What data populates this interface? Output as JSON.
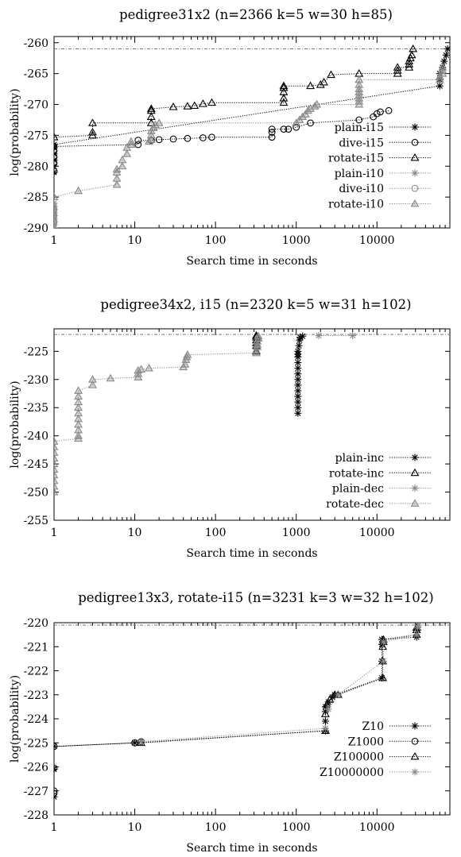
{
  "chart_data": [
    {
      "type": "scatter",
      "title": "pedigree31x2 (n=2366 k=5 w=30 h=85)",
      "xlabel": "Search time in seconds",
      "ylabel": "log(probability)",
      "xscale": "log",
      "xlim": [
        1,
        80000
      ],
      "ylim": [
        -290,
        -259
      ],
      "xticks": [
        1,
        10,
        100,
        1000,
        10000
      ],
      "yticks": [
        -290,
        -285,
        -280,
        -275,
        -270,
        -265,
        -260
      ],
      "legend": "bottom-right",
      "grid": false,
      "reference_line": -261,
      "series": [
        {
          "name": "plain-i15",
          "marker": "star",
          "color": "#000000",
          "points": [
            [
              1,
              -281
            ],
            [
              1,
              -280
            ],
            [
              1,
              -279
            ],
            [
              1,
              -278
            ],
            [
              1,
              -277
            ],
            [
              1,
              -276.5
            ],
            [
              60000,
              -267
            ],
            [
              60000,
              -266
            ],
            [
              60000,
              -265
            ],
            [
              65000,
              -264
            ],
            [
              68000,
              -263
            ],
            [
              72000,
              -262
            ],
            [
              75000,
              -261
            ]
          ]
        },
        {
          "name": "dive-i15",
          "marker": "circle",
          "color": "#000000",
          "points": [
            [
              1,
              -280.8
            ],
            [
              1,
              -279.5
            ],
            [
              1,
              -278.5
            ],
            [
              1,
              -277.5
            ],
            [
              1,
              -276.8
            ],
            [
              11,
              -276.5
            ],
            [
              11,
              -275.8
            ],
            [
              16,
              -275.8
            ],
            [
              20,
              -275.7
            ],
            [
              30,
              -275.6
            ],
            [
              45,
              -275.5
            ],
            [
              70,
              -275.4
            ],
            [
              90,
              -275.3
            ],
            [
              500,
              -275.3
            ],
            [
              500,
              -274.5
            ],
            [
              500,
              -274
            ],
            [
              700,
              -274
            ],
            [
              800,
              -274
            ],
            [
              1000,
              -273.7
            ],
            [
              1500,
              -273
            ],
            [
              6000,
              -272.5
            ],
            [
              9000,
              -272
            ],
            [
              10000,
              -271.5
            ],
            [
              11000,
              -271.2
            ],
            [
              14000,
              -271
            ]
          ]
        },
        {
          "name": "rotate-i15",
          "marker": "triangle",
          "color": "#000000",
          "points": [
            [
              1,
              -275.3
            ],
            [
              3,
              -275
            ],
            [
              3,
              -274.5
            ],
            [
              3,
              -273
            ],
            [
              16,
              -273
            ],
            [
              16,
              -272
            ],
            [
              16,
              -271
            ],
            [
              16,
              -270.7
            ],
            [
              30,
              -270.4
            ],
            [
              45,
              -270.3
            ],
            [
              55,
              -270.2
            ],
            [
              70,
              -269.9
            ],
            [
              90,
              -269.7
            ],
            [
              700,
              -269.7
            ],
            [
              700,
              -269
            ],
            [
              700,
              -268
            ],
            [
              700,
              -267.3
            ],
            [
              700,
              -267
            ],
            [
              1500,
              -267
            ],
            [
              2000,
              -266.8
            ],
            [
              2200,
              -266.4
            ],
            [
              2700,
              -265.2
            ],
            [
              6000,
              -265
            ],
            [
              18000,
              -265
            ],
            [
              18000,
              -264.5
            ],
            [
              18000,
              -264
            ],
            [
              25000,
              -264
            ],
            [
              25000,
              -263.5
            ],
            [
              25000,
              -263
            ],
            [
              26000,
              -262.5
            ],
            [
              27000,
              -262
            ],
            [
              28000,
              -261
            ]
          ]
        },
        {
          "name": "plain-i10",
          "marker": "star",
          "color": "#888888",
          "points": [
            [
              1,
              -290
            ],
            [
              1,
              -289.5
            ],
            [
              1,
              -289
            ],
            [
              1,
              -288.5
            ],
            [
              1,
              -288
            ],
            [
              1,
              -287.5
            ],
            [
              1,
              -287
            ],
            [
              1,
              -286.5
            ],
            [
              1,
              -286
            ]
          ]
        },
        {
          "name": "dive-i10",
          "marker": "circle",
          "color": "#888888",
          "points": [
            [
              1,
              -289
            ],
            [
              1,
              -288
            ],
            [
              1,
              -287
            ]
          ]
        },
        {
          "name": "rotate-i10",
          "marker": "triangle",
          "color": "#888888",
          "points": [
            [
              1,
              -285
            ],
            [
              2,
              -284
            ],
            [
              6,
              -283
            ],
            [
              6,
              -282
            ],
            [
              6,
              -281
            ],
            [
              6,
              -280.5
            ],
            [
              7,
              -280
            ],
            [
              7,
              -279
            ],
            [
              8,
              -278
            ],
            [
              8,
              -277
            ],
            [
              9,
              -276.5
            ],
            [
              9,
              -276
            ],
            [
              15,
              -276
            ],
            [
              16,
              -275.7
            ],
            [
              16,
              -275
            ],
            [
              16,
              -274.3
            ],
            [
              17,
              -273.8
            ],
            [
              18,
              -273.3
            ],
            [
              20,
              -273
            ],
            [
              1000,
              -273
            ],
            [
              1100,
              -272.5
            ],
            [
              1200,
              -272
            ],
            [
              1300,
              -271.6
            ],
            [
              1400,
              -271
            ],
            [
              1500,
              -270.7
            ],
            [
              1700,
              -270.3
            ],
            [
              1800,
              -270
            ],
            [
              6000,
              -270
            ],
            [
              6000,
              -269.5
            ],
            [
              6000,
              -269
            ],
            [
              6000,
              -268.5
            ],
            [
              6000,
              -268
            ],
            [
              6000,
              -267.5
            ],
            [
              6000,
              -266.8
            ],
            [
              6000,
              -266
            ],
            [
              60000,
              -266
            ],
            [
              60000,
              -265.5
            ],
            [
              65000,
              -265
            ],
            [
              65000,
              -264.5
            ],
            [
              65000,
              -264
            ]
          ]
        }
      ]
    },
    {
      "type": "scatter",
      "title": "pedigree34x2, i15 (n=2320 k=5 w=31 h=102)",
      "xlabel": "Search time in seconds",
      "ylabel": "log(probability)",
      "xscale": "log",
      "xlim": [
        1,
        80000
      ],
      "ylim": [
        -255,
        -221
      ],
      "xticks": [
        1,
        10,
        100,
        1000,
        10000
      ],
      "yticks": [
        -255,
        -250,
        -245,
        -240,
        -235,
        -230,
        -225,
        -220
      ],
      "legend": "bottom-right",
      "grid": false,
      "reference_line": -222,
      "series": [
        {
          "name": "plain-inc",
          "marker": "star",
          "color": "#000000",
          "points": [
            [
              1050,
              -236
            ],
            [
              1050,
              -235
            ],
            [
              1050,
              -234
            ],
            [
              1050,
              -233
            ],
            [
              1050,
              -232
            ],
            [
              1050,
              -231
            ],
            [
              1050,
              -230
            ],
            [
              1050,
              -229
            ],
            [
              1050,
              -228
            ],
            [
              1050,
              -227
            ],
            [
              1050,
              -226
            ],
            [
              1050,
              -225.5
            ],
            [
              1050,
              -225
            ],
            [
              1080,
              -224
            ],
            [
              1100,
              -223
            ],
            [
              1120,
              -222.5
            ],
            [
              1200,
              -222.3
            ]
          ]
        },
        {
          "name": "rotate-inc",
          "marker": "triangle",
          "color": "#000000",
          "points": [
            [
              320,
              -225
            ],
            [
              320,
              -224
            ],
            [
              320,
              -223.5
            ],
            [
              320,
              -223
            ],
            [
              320,
              -222.5
            ],
            [
              320,
              -222.2
            ]
          ]
        },
        {
          "name": "plain-dec",
          "marker": "star",
          "color": "#888888",
          "points": [
            [
              1900,
              -222.2
            ],
            [
              5000,
              -222.2
            ]
          ]
        },
        {
          "name": "rotate-dec",
          "marker": "triangle",
          "color": "#888888",
          "points": [
            [
              1,
              -250
            ],
            [
              1,
              -249
            ],
            [
              1,
              -248
            ],
            [
              1,
              -247
            ],
            [
              1,
              -246
            ],
            [
              1,
              -245
            ],
            [
              1,
              -244
            ],
            [
              1,
              -243
            ],
            [
              1,
              -242
            ],
            [
              1,
              -241
            ],
            [
              2,
              -240.5
            ],
            [
              2,
              -240
            ],
            [
              2,
              -239
            ],
            [
              2,
              -238
            ],
            [
              2,
              -237
            ],
            [
              2,
              -236
            ],
            [
              2,
              -235
            ],
            [
              2,
              -234
            ],
            [
              2,
              -233
            ],
            [
              2,
              -232
            ],
            [
              3,
              -231
            ],
            [
              3,
              -230
            ],
            [
              5,
              -229.8
            ],
            [
              11,
              -229.6
            ],
            [
              11,
              -229
            ],
            [
              11,
              -228.4
            ],
            [
              12,
              -228.2
            ],
            [
              15,
              -228
            ],
            [
              40,
              -227.8
            ],
            [
              42,
              -227.3
            ],
            [
              43,
              -226.5
            ],
            [
              44,
              -226
            ],
            [
              45,
              -225.6
            ],
            [
              320,
              -225.3
            ],
            [
              320,
              -224.8
            ],
            [
              330,
              -224.2
            ],
            [
              330,
              -223.8
            ],
            [
              330,
              -223.2
            ],
            [
              340,
              -222.7
            ],
            [
              340,
              -222.3
            ]
          ]
        }
      ]
    },
    {
      "type": "scatter",
      "title": "pedigree13x3, rotate-i15 (n=3231 k=3 w=32 h=102)",
      "xlabel": "Search time in seconds",
      "ylabel": "log(probability)",
      "xscale": "log",
      "xlim": [
        1,
        80000
      ],
      "ylim": [
        -228,
        -220
      ],
      "xticks": [
        1,
        10,
        100,
        1000,
        10000
      ],
      "yticks": [
        -228,
        -227,
        -226,
        -225,
        -224,
        -223,
        -222,
        -221,
        -220
      ],
      "legend": "bottom-right",
      "grid": false,
      "reference_line": -220.1,
      "series": [
        {
          "name": "Z10",
          "marker": "star",
          "color": "#000000",
          "points": [
            [
              1,
              -227.25
            ],
            [
              1,
              -226.1
            ],
            [
              1,
              -225.15
            ],
            [
              10,
              -225
            ],
            [
              2300,
              -224.5
            ],
            [
              2300,
              -224.1
            ],
            [
              2300,
              -223.7
            ],
            [
              2300,
              -223.5
            ],
            [
              2500,
              -223.3
            ],
            [
              2800,
              -223.1
            ],
            [
              3000,
              -223
            ],
            [
              11500,
              -222.3
            ],
            [
              11500,
              -221.6
            ],
            [
              11500,
              -220.9
            ],
            [
              11500,
              -220.7
            ],
            [
              31000,
              -220.6
            ],
            [
              32000,
              -220.3
            ]
          ]
        },
        {
          "name": "Z1000",
          "marker": "circle",
          "color": "#000000",
          "points": [
            [
              1,
              -227.1
            ],
            [
              1,
              -227
            ],
            [
              1,
              -226.05
            ],
            [
              1,
              -225.15
            ],
            [
              10,
              -225
            ],
            [
              12,
              -224.95
            ]
          ]
        },
        {
          "name": "Z100000",
          "marker": "triangle",
          "color": "#000000",
          "points": [
            [
              12,
              -225
            ],
            [
              2300,
              -224.5
            ],
            [
              2300,
              -223.8
            ],
            [
              2400,
              -223.4
            ],
            [
              2600,
              -223.2
            ],
            [
              3000,
              -223
            ],
            [
              3300,
              -223
            ],
            [
              11800,
              -222.3
            ],
            [
              11800,
              -221.6
            ],
            [
              11800,
              -221
            ],
            [
              12000,
              -220.8
            ],
            [
              12000,
              -220.7
            ],
            [
              31000,
              -220.5
            ],
            [
              31000,
              -220.3
            ],
            [
              31000,
              -220.2
            ]
          ]
        },
        {
          "name": "Z10000000",
          "marker": "star",
          "color": "#888888",
          "points": [
            [
              12,
              -224.95
            ],
            [
              2300,
              -224.4
            ],
            [
              2500,
              -223.6
            ],
            [
              3300,
              -223
            ],
            [
              12000,
              -221.6
            ],
            [
              12000,
              -220.8
            ],
            [
              31000,
              -220.5
            ],
            [
              32000,
              -220.2
            ],
            [
              33000,
              -220.1
            ]
          ]
        }
      ]
    }
  ]
}
